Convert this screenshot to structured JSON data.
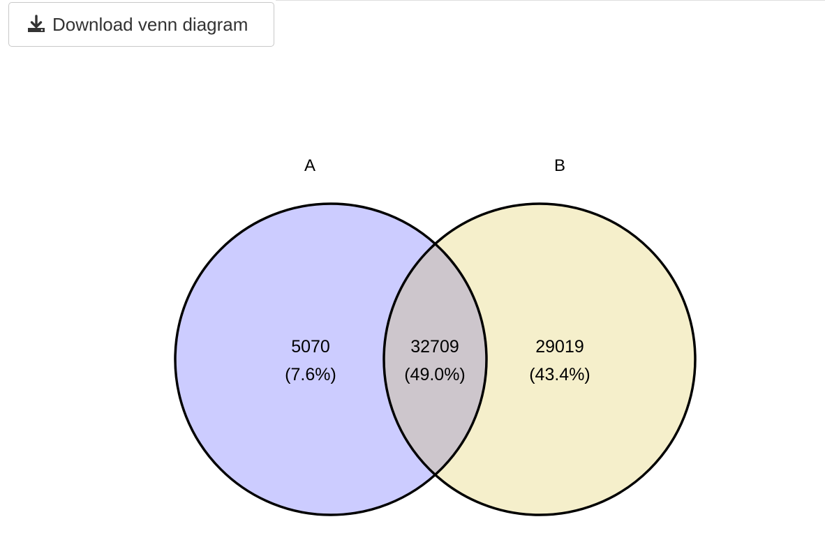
{
  "toolbar": {
    "download_label": "Download venn diagram",
    "download_icon": "download-icon"
  },
  "venn": {
    "sets": [
      {
        "label": "A",
        "color": "#ccccff"
      },
      {
        "label": "B",
        "color": "#f5efcb"
      }
    ],
    "overlap_color": "#cdc6cc",
    "stroke_color": "#000000",
    "regions": {
      "only_a": {
        "count": "5070",
        "percent": "(7.6%)"
      },
      "a_and_b": {
        "count": "32709",
        "percent": "(49.0%)"
      },
      "only_b": {
        "count": "29019",
        "percent": "(43.4%)"
      }
    }
  }
}
